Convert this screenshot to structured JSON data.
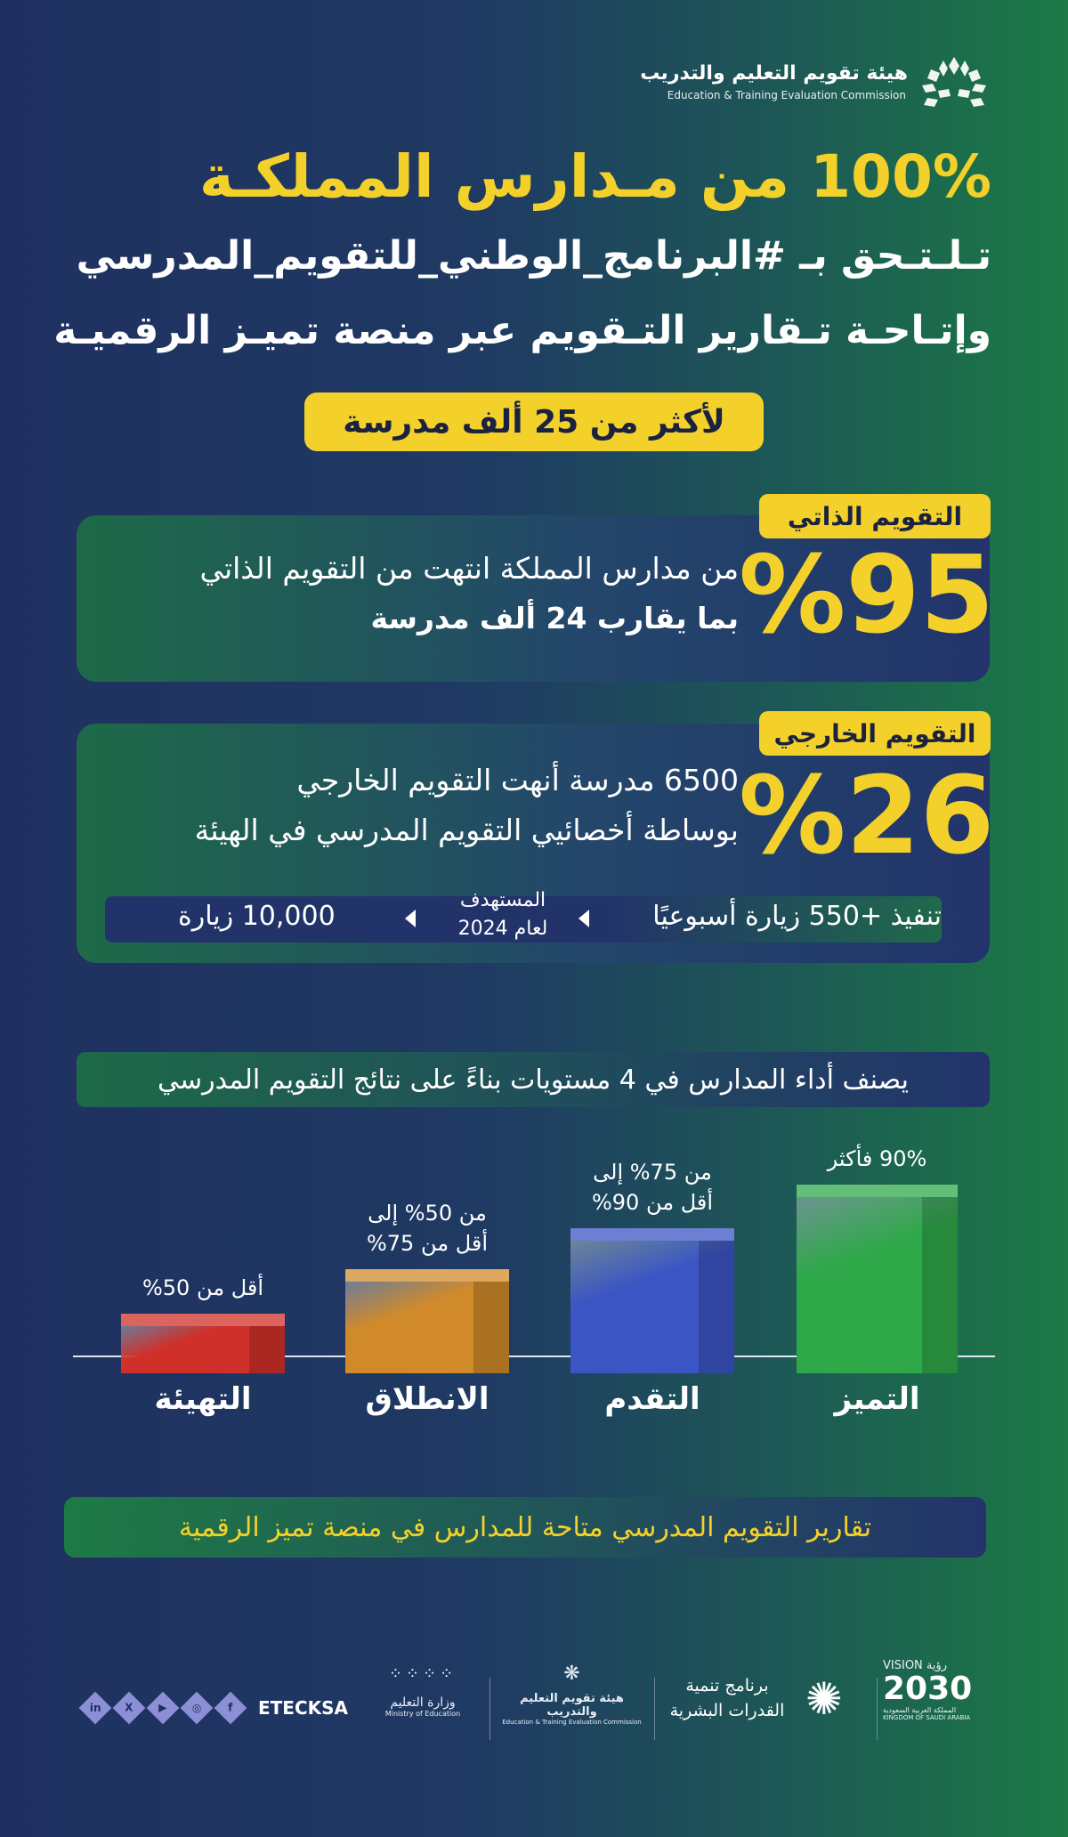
{
  "header": {
    "org_name_ar": "هيئة تقويم التعليم والتدريب",
    "org_name_en": "Education & Training Evaluation Commission",
    "logo_icon": "leaf-cluster-logo"
  },
  "hero": {
    "title": "100% من مـدارس المملكـة",
    "subtitle_line1": "تـلـتـحق بـ #البرنامج_الوطني_للتقويم_المدرسي",
    "subtitle_line2": "وإتـاحـة تـقارير التـقويم عبر منصة تميـز الرقميـة",
    "pill": "لأكثر من 25 ألف مدرسة"
  },
  "self_evaluation": {
    "tag": "التقويم الذاتي",
    "percent": "%95",
    "line1": "من مدارس المملكة انتهت من التقويم الذاتي",
    "line2": "بما يقارب 24 ألف مدرسة"
  },
  "external_evaluation": {
    "tag": "التقويم الخارجي",
    "percent": "%26",
    "line1": "6500 مدرسة أنهت التقويم الخارجي",
    "line2": "بوساطة أخصائيي التقويم المدرسي في الهيئة",
    "weekly": "تنفيذ +550 زيارة أسبوعيًا",
    "target_line1": "المستهدف",
    "target_line2": "لعام 2024",
    "target_value": "10,000 زيارة"
  },
  "levels": {
    "header": "يصنف أداء المدارس في 4 مستويات بناءً على نتائج التقويم المدرسي",
    "items": [
      {
        "name": "التميز",
        "range_line1": "90% فأكثر",
        "range_line2": "",
        "color": "#2fa84a",
        "rank": 4
      },
      {
        "name": "التقدم",
        "range_line1": "من 75% إلى",
        "range_line2": "أقل من 90%",
        "color": "#3b55c4",
        "rank": 3
      },
      {
        "name": "الانطلاق",
        "range_line1": "من 50% إلى",
        "range_line2": "أقل من 75%",
        "color": "#d18a2a",
        "rank": 2
      },
      {
        "name": "التهيئة",
        "range_line1": "أقل من 50%",
        "range_line2": "",
        "color": "#d0302a",
        "rank": 1
      }
    ]
  },
  "bottom_note": "تقارير التقويم المدرسي متاحة للمدارس في منصة تميز الرقمية",
  "footer": {
    "handle": "ETECKSA",
    "social_icons": [
      "linkedin",
      "x",
      "youtube",
      "instagram",
      "facebook"
    ],
    "moe_ar": "وزارة التعليم",
    "moe_en": "Ministry of Education",
    "etec_ar": "هيئة تقويم التعليم والتدريب",
    "etec_en": "Education & Training Evaluation Commission",
    "hcdp_line1": "برنامج تنمية",
    "hcdp_line2": "القدرات البشرية",
    "vision_top": "VISION رؤية",
    "vision_year": "2030",
    "vision_sub_ar": "المملكة العربية السعودية",
    "vision_sub_en": "KINGDOM OF SAUDI ARABIA"
  },
  "colors": {
    "accent_yellow": "#f4d12a",
    "navy": "#1f3060",
    "green": "#1b7a45"
  }
}
